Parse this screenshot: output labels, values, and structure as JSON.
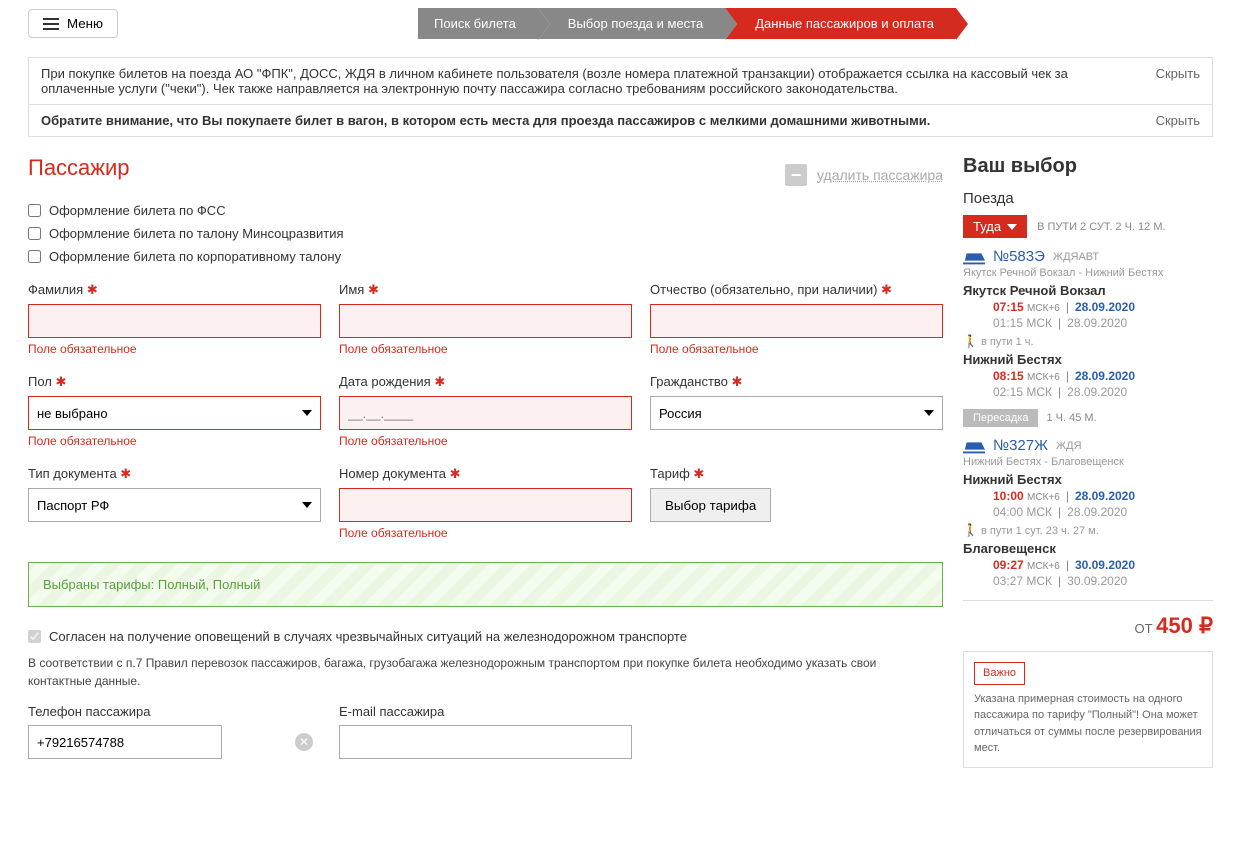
{
  "menu_label": "Меню",
  "steps": [
    "Поиск билета",
    "Выбор поезда и места",
    "Данные пассажиров и оплата"
  ],
  "active_step": 2,
  "notices": [
    "При покупке билетов на поезда АО \"ФПК\", ДОСС, ЖДЯ в личном кабинете пользователя (возле номера платежной транзакции) отображается ссылка на кассовый чек за оплаченные услуги (\"чеки\"). Чек также направляется на электронную почту пассажира согласно требованиям российского законодательства.",
    "Обратите внимание, что Вы покупаете билет в вагон, в котором есть места для проезда пассажиров с мелкими домашними животными."
  ],
  "hide_label": "Скрыть",
  "passenger_title": "Пассажир",
  "delete_passenger": "удалить пассажира",
  "checks": [
    "Оформление билета по ФСС",
    "Оформление билета по талону Минсоцразвития",
    "Оформление билета по корпоративному талону"
  ],
  "fields": {
    "surname": "Фамилия",
    "name": "Имя",
    "patronymic": "Отчество (обязательно, при наличии)",
    "gender": "Пол",
    "gender_value": "не выбрано",
    "dob": "Дата рождения",
    "dob_placeholder": "__.__.____",
    "citizenship": "Гражданство",
    "citizenship_value": "Россия",
    "doctype": "Тип документа",
    "doctype_value": "Паспорт РФ",
    "docnum": "Номер документа",
    "tariff": "Тариф",
    "tariff_btn": "Выбор тарифа",
    "required_msg": "Поле обязательное"
  },
  "tariff_selected": "Выбраны тарифы: Полный, Полный",
  "consent_text": "Согласен на получение оповещений в случаях чрезвычайных ситуаций на железнодорожном транспорте",
  "contact_note": "В соответствии с п.7 Правил перевозок пассажиров, багажа, грузобагажа железнодорожным транспортом при покупке билета необходимо указать свои контактные данные.",
  "phone_label": "Телефон пассажира",
  "phone_value": "+79216574788",
  "email_label": "E-mail пассажира",
  "sidebar": {
    "title": "Ваш выбор",
    "sub": "Поезда",
    "direction": "Туда",
    "travel_time": "В ПУТИ 2 СУТ. 2 Ч. 12 М.",
    "trains": [
      {
        "num": "№583Э",
        "tag": "ЖДЯАВТ",
        "route": "Якутск Речной Вокзал - Нижний Бестях",
        "from": "Якутск Речной Вокзал",
        "dep_time": "07:15",
        "dep_tz": "МСК+6",
        "dep_date": "28.09.2020",
        "dep_time_msk": "01:15 МСК",
        "dep_date_msk": "28.09.2020",
        "walk": "в пути  1 ч.",
        "to": "Нижний Бестях",
        "arr_time": "08:15",
        "arr_tz": "МСК+6",
        "arr_date": "28.09.2020",
        "arr_time_msk": "02:15 МСК",
        "arr_date_msk": "28.09.2020"
      },
      {
        "num": "№327Ж",
        "tag": "ЖДЯ",
        "route": "Нижний Бестях - Благовещенск",
        "from": "Нижний Бестях",
        "dep_time": "10:00",
        "dep_tz": "МСК+6",
        "dep_date": "28.09.2020",
        "dep_time_msk": "04:00 МСК",
        "dep_date_msk": "28.09.2020",
        "walk": "в пути  1 сут. 23 ч. 27 м.",
        "to": "Благовещенск",
        "arr_time": "09:27",
        "arr_tz": "МСК+6",
        "arr_date": "30.09.2020",
        "arr_time_msk": "03:27 МСК",
        "arr_date_msk": "30.09.2020"
      }
    ],
    "transfer": "Пересадка",
    "transfer_time": "1 Ч. 45 М.",
    "price_prefix": "ОТ",
    "price": "450 ₽",
    "important": "Важно",
    "important_text": "Указана примерная стоимость на одного пассажира по тарифу \"Полный\"! Она может отличаться от суммы после резервирования мест."
  }
}
